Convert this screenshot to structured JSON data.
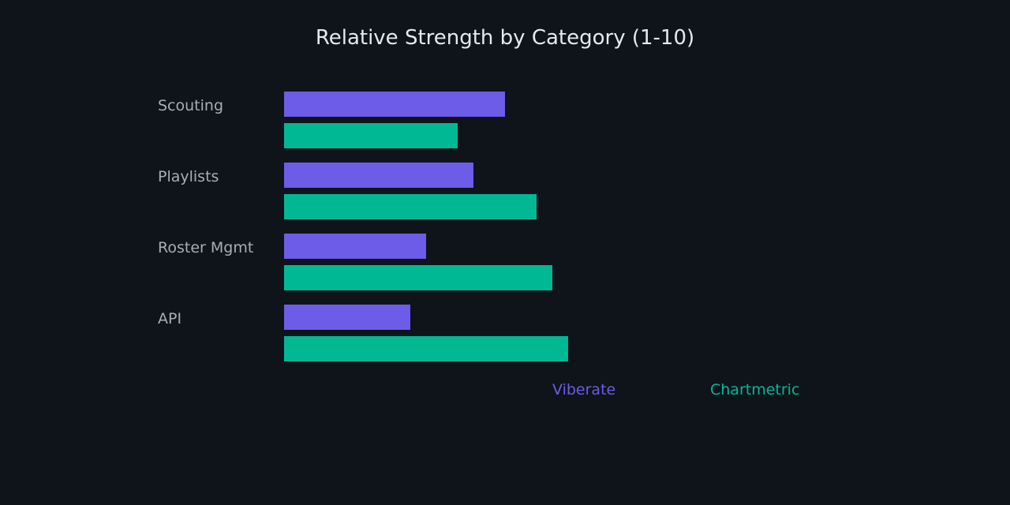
{
  "chart_data": {
    "type": "bar",
    "orientation": "horizontal",
    "title": "Relative Strength by Category (1-10)",
    "categories": [
      "Scouting",
      "Playlists",
      "Roster Mgmt",
      "API"
    ],
    "series": [
      {
        "name": "Viberate",
        "color": "#6c5ce7",
        "values": [
          7,
          6,
          4.5,
          4
        ]
      },
      {
        "name": "Chartmetric",
        "color": "#00b894",
        "values": [
          5.5,
          8,
          8.5,
          9
        ]
      }
    ],
    "xlim": [
      0,
      10
    ],
    "grid": false,
    "legend": "bottom"
  }
}
